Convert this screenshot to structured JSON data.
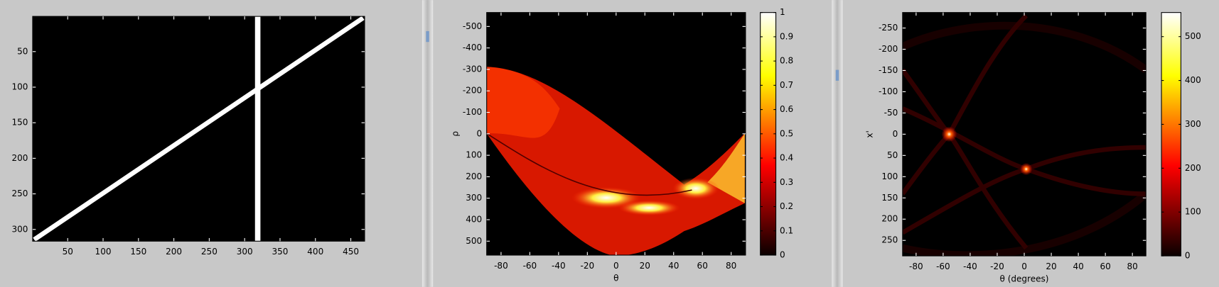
{
  "chart_data": [
    {
      "type": "image",
      "xlim": [
        0.5,
        469.5
      ],
      "ylim": [
        0.5,
        316.5
      ],
      "ydir": "reverse",
      "xticks": [
        50,
        100,
        150,
        200,
        250,
        300,
        350,
        400,
        450
      ],
      "yticks": [
        50,
        100,
        150,
        200,
        250,
        300
      ]
    },
    {
      "type": "heatmap",
      "xlabel": "θ",
      "ylabel": "ρ",
      "xlim": [
        -90,
        90
      ],
      "ylim": [
        -565,
        565
      ],
      "ydir": "reverse",
      "xticks": [
        -80,
        -60,
        -40,
        -20,
        0,
        20,
        40,
        60,
        80
      ],
      "yticks": [
        -500,
        -400,
        -300,
        -200,
        -100,
        0,
        100,
        200,
        300,
        400,
        500
      ],
      "clim": [
        0,
        1
      ],
      "cticks": [
        0,
        0.1,
        0.2,
        0.3,
        0.4,
        0.5,
        0.6,
        0.7,
        0.8,
        0.9,
        1
      ]
    },
    {
      "type": "heatmap",
      "xlabel": "θ (degrees)",
      "ylabel": "x'",
      "xlim": [
        -90,
        90
      ],
      "ylim": [
        -286.5,
        286.5
      ],
      "ydir": "reverse",
      "xticks": [
        -80,
        -60,
        -40,
        -20,
        0,
        20,
        40,
        60,
        80
      ],
      "yticks": [
        -250,
        -200,
        -150,
        -100,
        -50,
        0,
        50,
        100,
        150,
        200,
        250
      ],
      "clim": [
        0,
        555
      ],
      "cticks": [
        0,
        100,
        200,
        300,
        400,
        500
      ]
    }
  ]
}
